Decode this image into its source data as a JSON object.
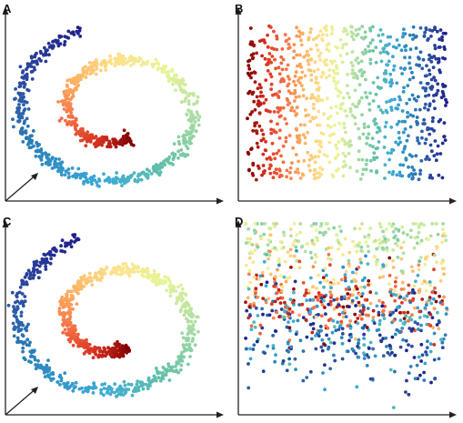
{
  "panels": [
    {
      "label": "A",
      "kind": "swiss-roll-3d"
    },
    {
      "label": "B",
      "kind": "unrolled-embedding"
    },
    {
      "label": "C",
      "kind": "swiss-roll-3d"
    },
    {
      "label": "D",
      "kind": "scrambled-embedding"
    }
  ],
  "colormap": [
    "#7f0000",
    "#d7301f",
    "#f46d43",
    "#fdae61",
    "#fee08b",
    "#e6f598",
    "#abdda4",
    "#66c2a5",
    "#3aa8d8",
    "#2b83ba",
    "#2c4ba0",
    "#1f1f8a"
  ],
  "axis_color": "#222222",
  "points_per_panel": 900
}
